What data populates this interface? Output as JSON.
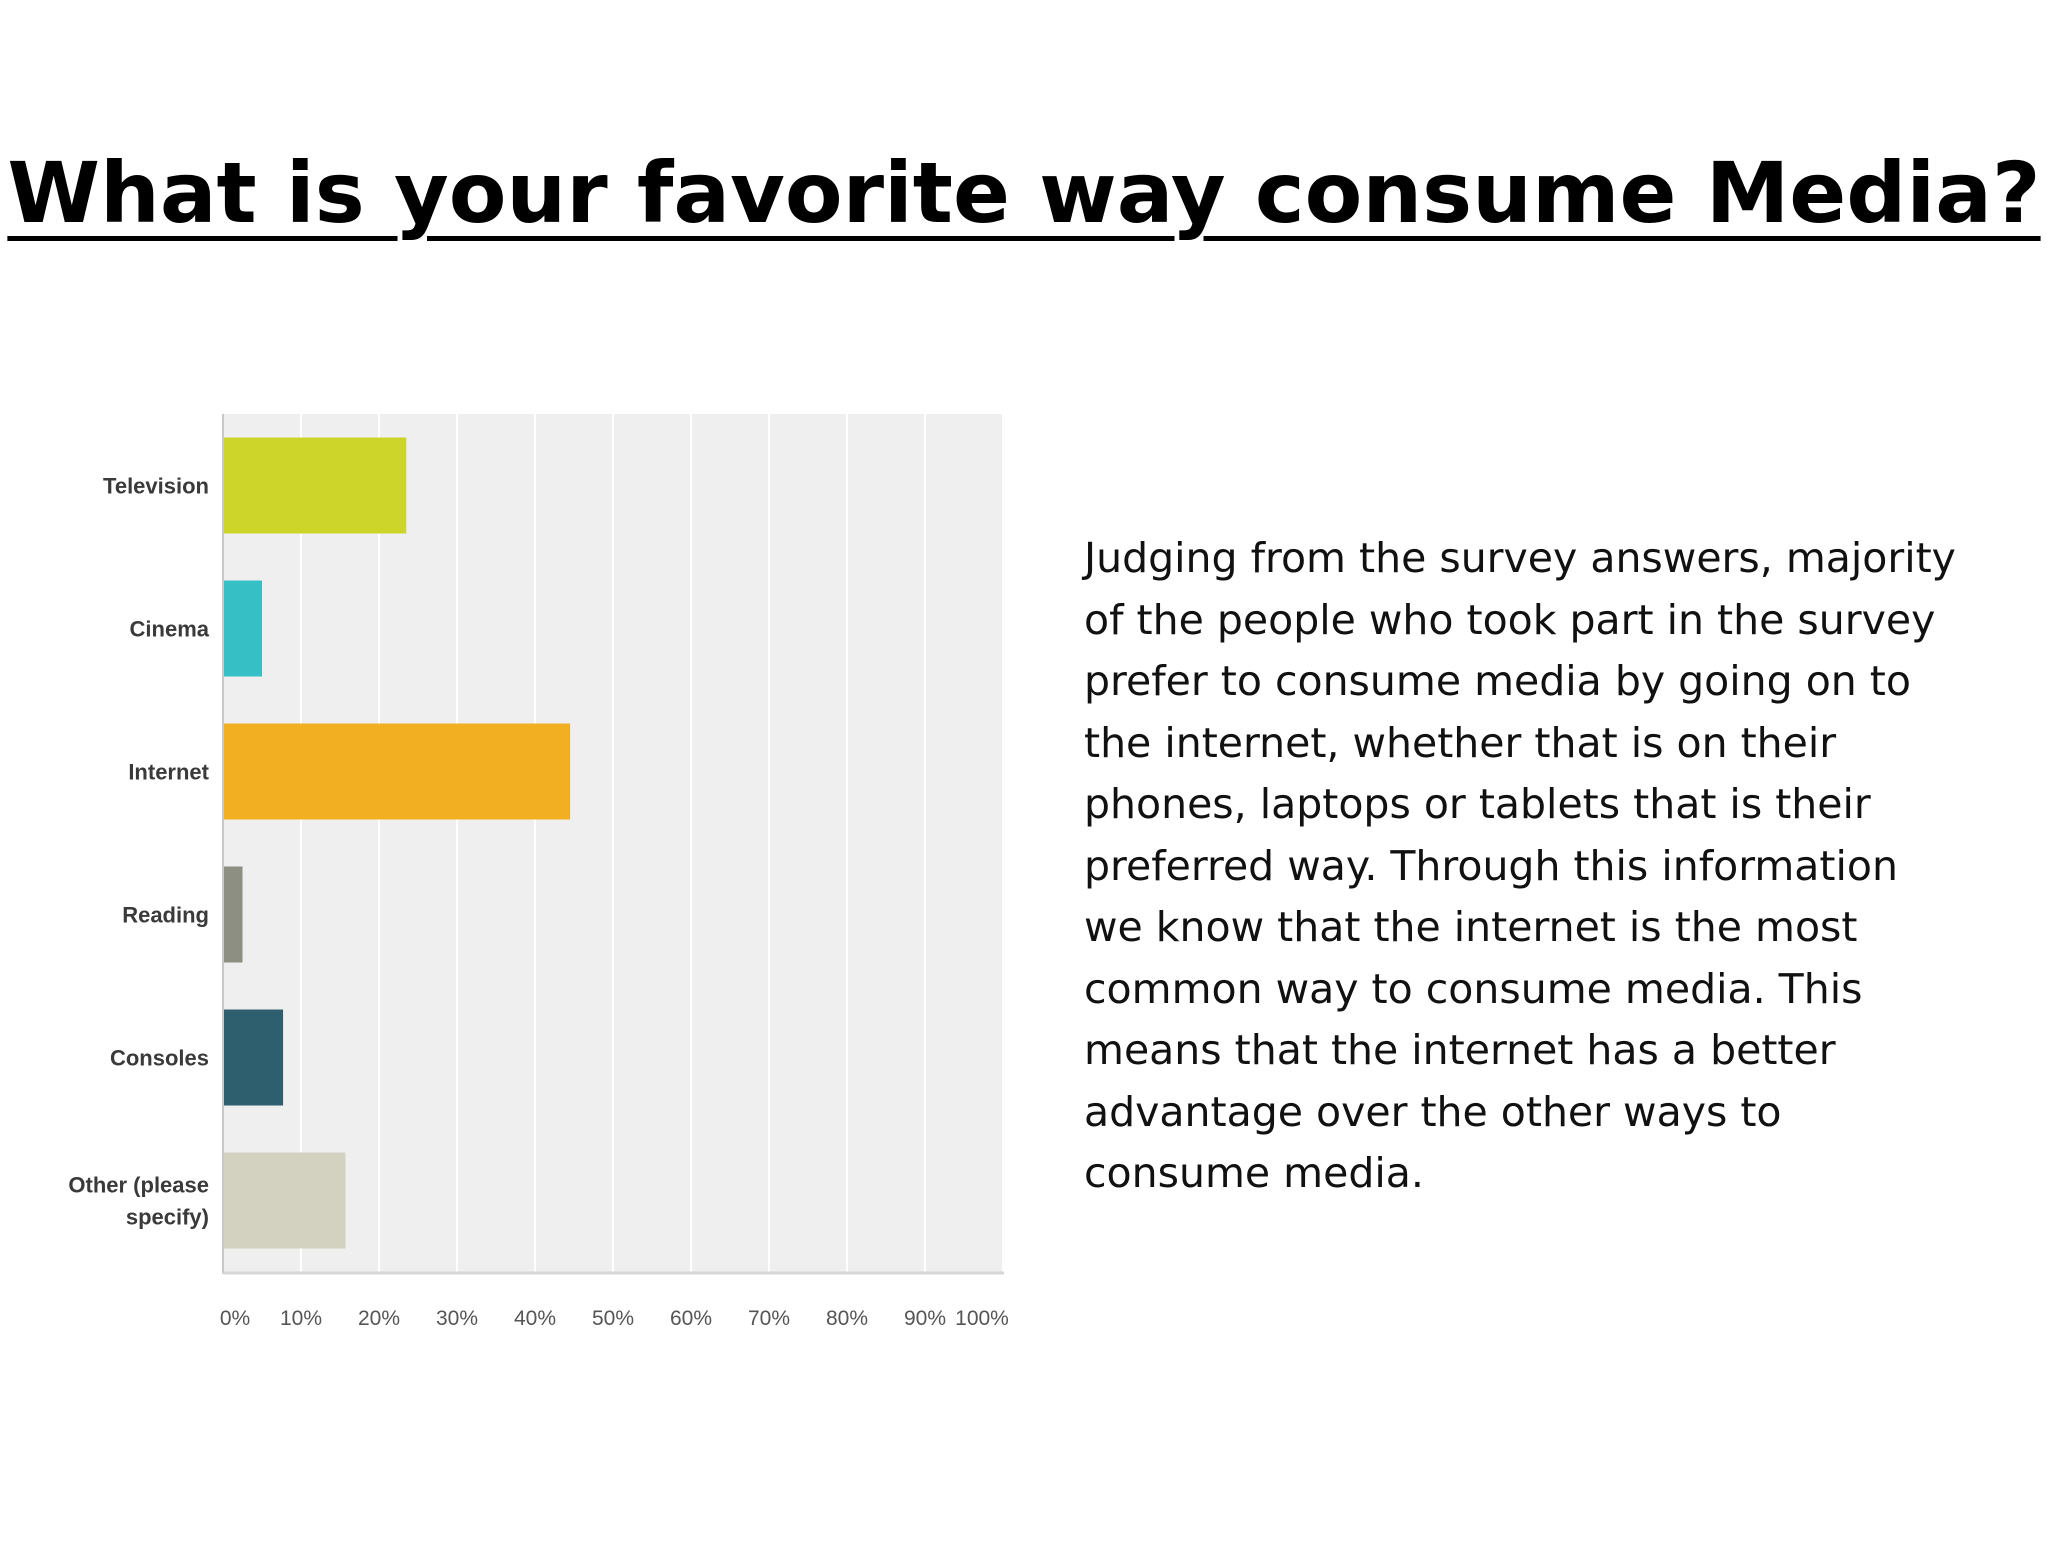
{
  "slide": {
    "title": "What is your favorite way consume Media?",
    "body": "Judging from the survey answers, majority of the people who took part in the survey prefer to consume media by going on to the internet, whether that is on their phones, laptops or tablets that is their preferred way. Through this information we know that the internet is the most common way to consume media. This means that the internet has a better advantage over the other ways to consume media."
  },
  "chart_data": {
    "type": "bar",
    "orientation": "horizontal",
    "title": "",
    "xlabel": "",
    "ylabel": "",
    "categories": [
      "Television",
      "Cinema",
      "Internet",
      "Reading",
      "Consoles",
      "Other (please specify)"
    ],
    "category_lines": [
      [
        "Television"
      ],
      [
        "Cinema"
      ],
      [
        "Internet"
      ],
      [
        "Reading"
      ],
      [
        "Consoles"
      ],
      [
        "Other (please",
        "specify)"
      ]
    ],
    "values": [
      23.5,
      5,
      44.5,
      2.5,
      7.7,
      15.7
    ],
    "colors": [
      "#cdd52b",
      "#37bfc6",
      "#f2af21",
      "#8e8f83",
      "#2e5f6e",
      "#d3d1c0"
    ],
    "xlim": [
      0,
      100
    ],
    "x_ticks": [
      "0%",
      "10%",
      "20%",
      "30%",
      "40%",
      "50%",
      "60%",
      "70%",
      "80%",
      "90%",
      "100%"
    ],
    "grid": true,
    "plot_background": "#efefef",
    "grid_color": "#ffffff"
  }
}
